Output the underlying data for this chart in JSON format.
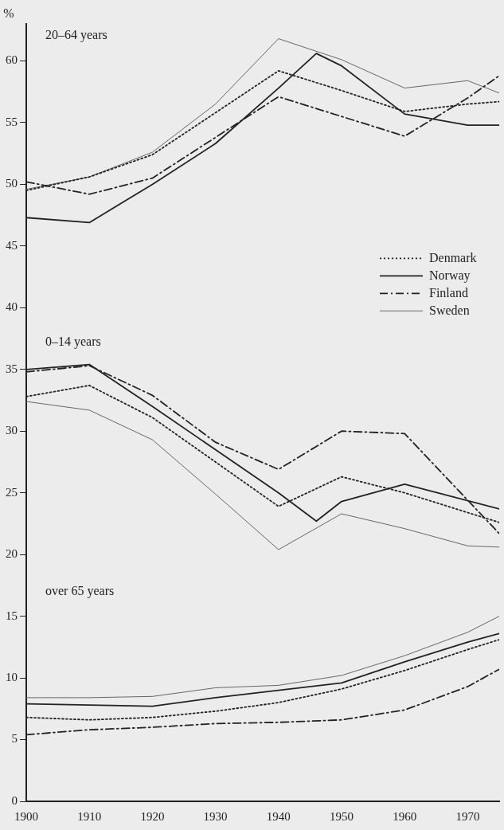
{
  "chart_data": {
    "type": "line",
    "ylabel": "%",
    "xlim": [
      1900,
      1975
    ],
    "ylim": [
      0,
      63
    ],
    "xticks": [
      1900,
      1910,
      1920,
      1930,
      1940,
      1950,
      1960,
      1970
    ],
    "yticks": [
      0,
      5,
      10,
      15,
      20,
      25,
      30,
      35,
      40,
      45,
      50,
      55,
      60
    ],
    "grid": false,
    "legend": "right",
    "marker": "none",
    "annotations": [
      "20–64 years",
      "0–14 years",
      "over 65 years"
    ],
    "series": [
      {
        "name": "Denmark",
        "color": "#222222",
        "line_style": "dotted",
        "x": [
          1900,
          1910,
          1920,
          1930,
          1940,
          1950,
          1960,
          1970,
          1975
        ],
        "values": [
          49.5,
          50.6,
          52.4,
          55.8,
          59.2,
          57.6,
          55.9,
          56.5,
          56.7
        ]
      },
      {
        "name": "Norway",
        "color": "#222222",
        "line_style": "solid",
        "x": [
          1900,
          1910,
          1920,
          1930,
          1940,
          1946,
          1950,
          1960,
          1970,
          1975
        ],
        "values": [
          47.3,
          46.9,
          50.0,
          53.3,
          57.8,
          60.6,
          59.6,
          55.7,
          54.8,
          54.8
        ]
      },
      {
        "name": "Finland",
        "color": "#222222",
        "line_style": "dashed",
        "x": [
          1900,
          1910,
          1920,
          1930,
          1940,
          1950,
          1960,
          1970,
          1975
        ],
        "values": [
          50.2,
          49.2,
          50.5,
          53.8,
          57.1,
          55.5,
          53.9,
          57.0,
          58.8
        ]
      },
      {
        "name": "Sweden",
        "color": "#666666",
        "line_style": "solid",
        "x": [
          1900,
          1910,
          1920,
          1930,
          1940,
          1950,
          1960,
          1970,
          1975
        ],
        "values": [
          49.6,
          50.6,
          52.6,
          56.5,
          61.8,
          60.1,
          57.8,
          58.4,
          57.4
        ]
      },
      {
        "color": "#222222",
        "line_style": "dotted",
        "x": [
          1900,
          1910,
          1920,
          1930,
          1940,
          1950,
          1960,
          1970,
          1975
        ],
        "values": [
          32.8,
          33.7,
          31.1,
          27.5,
          23.9,
          26.3,
          25.0,
          23.4,
          22.6
        ]
      },
      {
        "color": "#222222",
        "line_style": "solid",
        "x": [
          1900,
          1910,
          1920,
          1930,
          1940,
          1946,
          1950,
          1960,
          1975
        ],
        "values": [
          35.0,
          35.4,
          32.0,
          28.5,
          25.0,
          22.7,
          24.3,
          25.7,
          23.7
        ]
      },
      {
        "color": "#222222",
        "line_style": "dashed",
        "x": [
          1900,
          1910,
          1920,
          1930,
          1940,
          1950,
          1960,
          1975
        ],
        "values": [
          34.8,
          35.3,
          32.9,
          29.1,
          26.9,
          30.0,
          29.8,
          21.7
        ]
      },
      {
        "color": "#666666",
        "line_style": "solid",
        "x": [
          1900,
          1910,
          1920,
          1930,
          1940,
          1950,
          1960,
          1970,
          1975
        ],
        "values": [
          32.4,
          31.7,
          29.3,
          24.9,
          20.4,
          23.3,
          22.1,
          20.7,
          20.6
        ]
      },
      {
        "color": "#222222",
        "line_style": "dotted",
        "x": [
          1900,
          1910,
          1920,
          1930,
          1940,
          1950,
          1960,
          1970,
          1975
        ],
        "values": [
          6.8,
          6.6,
          6.8,
          7.3,
          8.0,
          9.1,
          10.6,
          12.3,
          13.1
        ]
      },
      {
        "color": "#222222",
        "line_style": "solid",
        "x": [
          1900,
          1910,
          1920,
          1930,
          1940,
          1950,
          1960,
          1970,
          1975
        ],
        "values": [
          7.9,
          7.8,
          7.7,
          8.4,
          9.0,
          9.6,
          11.3,
          12.9,
          13.6
        ]
      },
      {
        "color": "#222222",
        "line_style": "dashed",
        "x": [
          1900,
          1910,
          1920,
          1930,
          1940,
          1950,
          1960,
          1970,
          1975
        ],
        "values": [
          5.4,
          5.8,
          6.0,
          6.3,
          6.4,
          6.6,
          7.4,
          9.3,
          10.7
        ]
      },
      {
        "color": "#666666",
        "line_style": "solid",
        "x": [
          1900,
          1910,
          1920,
          1930,
          1940,
          1950,
          1960,
          1970,
          1975
        ],
        "values": [
          8.4,
          8.4,
          8.5,
          9.2,
          9.4,
          10.2,
          11.8,
          13.7,
          15.0
        ]
      }
    ]
  }
}
